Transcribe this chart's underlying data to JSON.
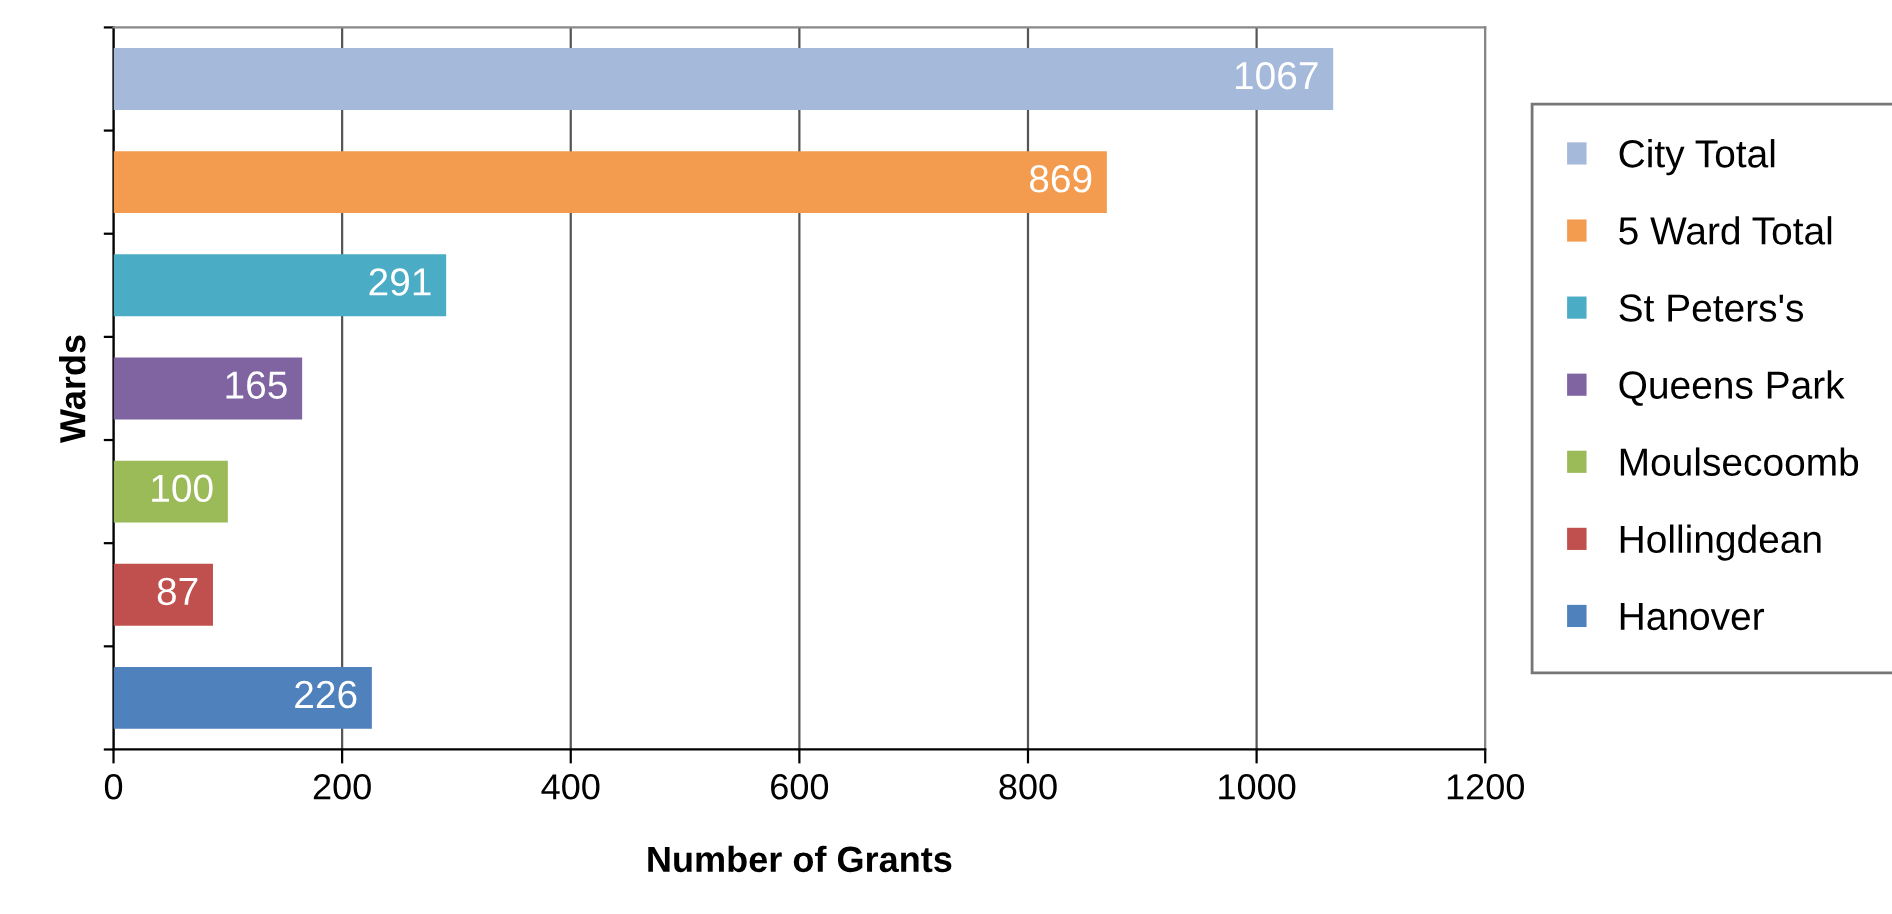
{
  "chart_data": {
    "type": "bar",
    "orientation": "horizontal",
    "xlabel": "Number of Grants",
    "ylabel": "Wards",
    "categories": [
      null,
      null,
      null,
      null,
      null,
      null,
      null
    ],
    "series": [
      {
        "name": "City Total",
        "color": "#a5b9db",
        "values": [
          1067,
          null,
          null,
          null,
          null,
          null,
          null
        ]
      },
      {
        "name": "5 Ward Total",
        "color": "#f39c4f",
        "values": [
          null,
          869,
          null,
          null,
          null,
          null,
          null
        ]
      },
      {
        "name": "St Peters's",
        "color": "#4bacc6",
        "values": [
          null,
          null,
          291,
          null,
          null,
          null,
          null
        ]
      },
      {
        "name": "Queens Park",
        "color": "#8064a2",
        "values": [
          null,
          null,
          null,
          165,
          null,
          null,
          null
        ]
      },
      {
        "name": "Moulsecoomb",
        "color": "#9bbb59",
        "values": [
          null,
          null,
          null,
          null,
          100,
          null,
          null
        ]
      },
      {
        "name": "Hollingdean",
        "color": "#c0504d",
        "values": [
          null,
          null,
          null,
          null,
          null,
          87,
          null
        ]
      },
      {
        "name": "Hanover",
        "color": "#4f81bd",
        "values": [
          null,
          null,
          null,
          null,
          null,
          null,
          226
        ]
      }
    ],
    "xlim": [
      0,
      1200
    ],
    "xticks": [
      0,
      200,
      400,
      600,
      800,
      1000,
      1200
    ],
    "grid": "x",
    "legend": "right",
    "data_labels": true,
    "tick_labels": "x"
  }
}
